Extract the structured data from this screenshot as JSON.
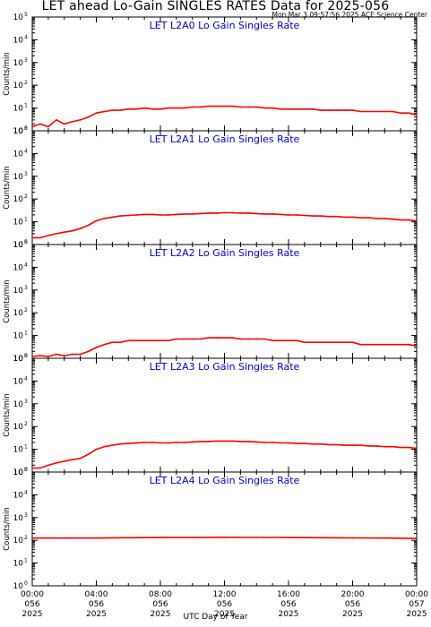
{
  "title": "LET ahead Lo-Gain SINGLES RATES Data for 2025-056",
  "timestamp": "Mon Mar  3 09:57:56 2025 ACE Science Center",
  "xlabel": "UTC Day of Year",
  "colors": {
    "trace": "#ff0000",
    "panel_label": "#0000cc",
    "axes": "#000000"
  },
  "chart_data": {
    "type": "line",
    "y_scale": "log",
    "ylim": [
      1,
      100000
    ],
    "ylabel": "Counts/min",
    "ytick_exponents": [
      0,
      1,
      2,
      3,
      4,
      5
    ],
    "x_unit": "hours",
    "xlim": [
      0,
      24
    ],
    "x_ticks": [
      {
        "hour": 0,
        "time": "00:00",
        "doy": "056",
        "year": "2025"
      },
      {
        "hour": 4,
        "time": "04:00",
        "doy": "056",
        "year": "2025"
      },
      {
        "hour": 8,
        "time": "08:00",
        "doy": "056",
        "year": "2025"
      },
      {
        "hour": 12,
        "time": "12:00",
        "doy": "056",
        "year": "2025"
      },
      {
        "hour": 16,
        "time": "16:00",
        "doy": "056",
        "year": "2025"
      },
      {
        "hour": 20,
        "time": "20:00",
        "doy": "056",
        "year": "2025"
      },
      {
        "hour": 24,
        "time": "00:00",
        "doy": "057",
        "year": "2025"
      }
    ],
    "panels": [
      {
        "label": "LET L2A0 Lo Gain Singles Rate",
        "x": [
          0,
          0.5,
          1,
          1.5,
          2,
          2.5,
          3,
          3.5,
          4,
          4.5,
          5,
          5.5,
          6,
          6.5,
          7,
          7.5,
          8,
          8.5,
          9,
          9.5,
          10,
          10.5,
          11,
          11.5,
          12,
          12.5,
          13,
          13.5,
          14,
          14.5,
          15,
          15.5,
          16,
          16.5,
          17,
          17.5,
          18,
          18.5,
          19,
          19.5,
          20,
          20.5,
          21,
          21.5,
          22,
          22.5,
          23,
          23.5,
          24
        ],
        "y": [
          1.5,
          2,
          1.5,
          3,
          2,
          2.5,
          3,
          4,
          6,
          7,
          8,
          8,
          9,
          9,
          10,
          9,
          9,
          10,
          10,
          10,
          11,
          11,
          12,
          12,
          12,
          12,
          11,
          11,
          11,
          10,
          10,
          9,
          9,
          9,
          9,
          9,
          8,
          8,
          8,
          8,
          8,
          7,
          7,
          7,
          7,
          7,
          6,
          6,
          5
        ]
      },
      {
        "label": "LET L2A1 Lo Gain Singles Rate",
        "x": [
          0,
          0.5,
          1,
          1.5,
          2,
          2.5,
          3,
          3.5,
          4,
          4.5,
          5,
          5.5,
          6,
          6.5,
          7,
          7.5,
          8,
          8.5,
          9,
          9.5,
          10,
          10.5,
          11,
          11.5,
          12,
          12.5,
          13,
          13.5,
          14,
          14.5,
          15,
          15.5,
          16,
          16.5,
          17,
          17.5,
          18,
          18.5,
          19,
          19.5,
          20,
          20.5,
          21,
          21.5,
          22,
          22.5,
          23,
          23.5,
          24
        ],
        "y": [
          2,
          2,
          2.5,
          3,
          3.5,
          4,
          5,
          7,
          11,
          14,
          16,
          18,
          19,
          20,
          21,
          21,
          20,
          20,
          21,
          22,
          22,
          23,
          24,
          24,
          25,
          25,
          24,
          24,
          23,
          22,
          22,
          21,
          20,
          20,
          19,
          18,
          18,
          17,
          17,
          16,
          16,
          15,
          15,
          14,
          14,
          13,
          12,
          12,
          11
        ]
      },
      {
        "label": "LET L2A2 Lo Gain Singles Rate",
        "x": [
          0,
          0.5,
          1,
          1.5,
          2,
          2.5,
          3,
          3.5,
          4,
          4.5,
          5,
          5.5,
          6,
          6.5,
          7,
          7.5,
          8,
          8.5,
          9,
          9.5,
          10,
          10.5,
          11,
          11.5,
          12,
          12.5,
          13,
          13.5,
          14,
          14.5,
          15,
          15.5,
          16,
          16.5,
          17,
          17.5,
          18,
          18.5,
          19,
          19.5,
          20,
          20.5,
          21,
          21.5,
          22,
          22.5,
          23,
          23.5,
          24
        ],
        "y": [
          1.2,
          1.3,
          1.2,
          1.5,
          1.3,
          1.5,
          1.5,
          2,
          3,
          4,
          5,
          5,
          6,
          6,
          6,
          6,
          6,
          6,
          7,
          7,
          7,
          7,
          8,
          8,
          8,
          8,
          7,
          7,
          7,
          7,
          6,
          6,
          6,
          6,
          5,
          5,
          5,
          5,
          5,
          5,
          5,
          4,
          4,
          4,
          4,
          4,
          4,
          4,
          3.5
        ]
      },
      {
        "label": "LET L2A3 Lo Gain Singles Rate",
        "x": [
          0,
          0.5,
          1,
          1.5,
          2,
          2.5,
          3,
          3.5,
          4,
          4.5,
          5,
          5.5,
          6,
          6.5,
          7,
          7.5,
          8,
          8.5,
          9,
          9.5,
          10,
          10.5,
          11,
          11.5,
          12,
          12.5,
          13,
          13.5,
          14,
          14.5,
          15,
          15.5,
          16,
          16.5,
          17,
          17.5,
          18,
          18.5,
          19,
          19.5,
          20,
          20.5,
          21,
          21.5,
          22,
          22.5,
          23,
          23.5,
          24
        ],
        "y": [
          1.5,
          1.5,
          2,
          2.5,
          3,
          3.5,
          4,
          6,
          10,
          13,
          15,
          17,
          18,
          19,
          20,
          20,
          19,
          19,
          20,
          20,
          21,
          22,
          22,
          23,
          23,
          23,
          22,
          22,
          21,
          20,
          20,
          19,
          19,
          18,
          18,
          17,
          17,
          16,
          16,
          15,
          15,
          15,
          14,
          14,
          13,
          13,
          12,
          12,
          11
        ]
      },
      {
        "label": "LET L2A4 Lo Gain Singles Rate",
        "x": [
          0,
          2,
          4,
          6,
          8,
          10,
          12,
          14,
          16,
          18,
          20,
          22,
          24
        ],
        "y": [
          125,
          125,
          126,
          130,
          132,
          133,
          135,
          134,
          132,
          130,
          128,
          126,
          120
        ]
      }
    ]
  }
}
